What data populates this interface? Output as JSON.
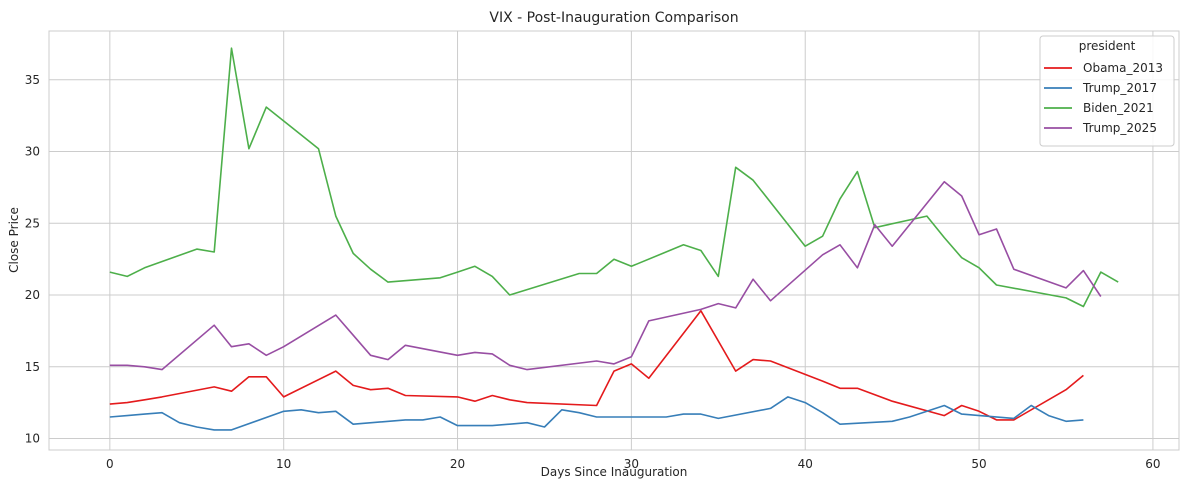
{
  "chart_data": {
    "type": "line",
    "title": "VIX - Post-Inauguration Comparison",
    "xlabel": "Days Since Inauguration",
    "ylabel": "Close Price",
    "xlim": [
      -3.5,
      61.5
    ],
    "ylim": [
      9.2,
      38.4
    ],
    "xticks": [
      0,
      10,
      20,
      30,
      40,
      50,
      60
    ],
    "yticks": [
      10,
      15,
      20,
      25,
      30,
      35
    ],
    "grid": true,
    "legend": {
      "title": "president",
      "placement": "top-right"
    },
    "series": [
      {
        "name": "Obama_2013",
        "color": "#e41a1c",
        "x": [
          0,
          1,
          2,
          3,
          6,
          7,
          8,
          9,
          10,
          13,
          14,
          15,
          16,
          17,
          20,
          21,
          22,
          23,
          24,
          28,
          29,
          30,
          31,
          34,
          36,
          37,
          38,
          41,
          42,
          43,
          45,
          48,
          49,
          50,
          51,
          52,
          55,
          56
        ],
        "y": [
          12.4,
          12.5,
          12.7,
          12.9,
          13.6,
          13.3,
          14.3,
          14.3,
          12.9,
          14.7,
          13.7,
          13.4,
          13.5,
          13.0,
          12.9,
          12.6,
          13.0,
          12.7,
          12.5,
          12.3,
          14.7,
          15.2,
          14.2,
          18.9,
          14.7,
          15.5,
          15.4,
          14.0,
          13.5,
          13.5,
          12.6,
          11.6,
          12.3,
          11.9,
          11.3,
          11.3,
          13.4,
          14.4
        ]
      },
      {
        "name": "Trump_2017",
        "color": "#377eb8",
        "x": [
          0,
          1,
          2,
          3,
          4,
          5,
          6,
          7,
          10,
          11,
          12,
          13,
          14,
          17,
          18,
          19,
          20,
          21,
          22,
          24,
          25,
          26,
          27,
          28,
          31,
          32,
          33,
          34,
          35,
          38,
          39,
          40,
          41,
          42,
          45,
          46,
          47,
          48,
          49,
          52,
          53,
          54,
          55,
          56
        ],
        "y": [
          11.5,
          11.6,
          11.7,
          11.8,
          11.1,
          10.8,
          10.6,
          10.6,
          11.9,
          12.0,
          11.8,
          11.9,
          11.0,
          11.3,
          11.3,
          11.5,
          10.9,
          10.9,
          10.9,
          11.1,
          10.8,
          12.0,
          11.8,
          11.5,
          11.5,
          11.5,
          11.7,
          11.7,
          11.4,
          12.1,
          12.9,
          12.5,
          11.8,
          11.0,
          11.2,
          11.5,
          11.9,
          12.3,
          11.7,
          11.4,
          12.3,
          11.6,
          11.2,
          11.3
        ]
      },
      {
        "name": "Biden_2021",
        "color": "#4daf4a",
        "x": [
          0,
          1,
          2,
          5,
          6,
          7,
          8,
          9,
          12,
          13,
          14,
          15,
          16,
          19,
          20,
          21,
          22,
          23,
          27,
          28,
          29,
          30,
          33,
          34,
          35,
          36,
          37,
          40,
          41,
          42,
          43,
          44,
          47,
          48,
          49,
          50,
          51,
          55,
          56,
          57,
          58
        ],
        "y": [
          21.6,
          21.3,
          21.9,
          23.2,
          23.0,
          37.2,
          30.2,
          33.1,
          30.2,
          25.5,
          22.9,
          21.8,
          20.9,
          21.2,
          21.6,
          22.0,
          21.3,
          20.0,
          21.5,
          21.5,
          22.5,
          22.0,
          23.5,
          23.1,
          21.3,
          28.9,
          28.0,
          23.4,
          24.1,
          26.7,
          28.6,
          24.7,
          25.5,
          24.0,
          22.6,
          21.9,
          20.7,
          19.8,
          19.2,
          21.6,
          20.9
        ]
      },
      {
        "name": "Trump_2025",
        "color": "#984ea3",
        "x": [
          0,
          1,
          2,
          3,
          6,
          7,
          8,
          9,
          10,
          13,
          14,
          15,
          16,
          17,
          20,
          21,
          22,
          23,
          24,
          28,
          29,
          30,
          31,
          34,
          35,
          36,
          37,
          38,
          41,
          42,
          43,
          44,
          45,
          48,
          49,
          50,
          51,
          52,
          55,
          56,
          57
        ],
        "y": [
          15.1,
          15.1,
          15.0,
          14.8,
          17.9,
          16.4,
          16.6,
          15.8,
          16.4,
          18.6,
          17.2,
          15.8,
          15.5,
          16.5,
          15.8,
          16.0,
          15.9,
          15.1,
          14.8,
          15.4,
          15.2,
          15.7,
          18.2,
          19.0,
          19.4,
          19.1,
          21.1,
          19.6,
          22.8,
          23.5,
          21.9,
          24.9,
          23.4,
          27.9,
          26.9,
          24.2,
          24.6,
          21.8,
          20.5,
          21.7,
          19.9
        ]
      }
    ]
  }
}
